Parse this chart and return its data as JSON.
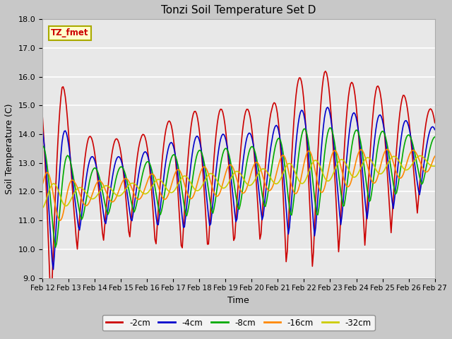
{
  "title": "Tonzi Soil Temperature Set D",
  "xlabel": "Time",
  "ylabel": "Soil Temperature (C)",
  "ylim": [
    9.0,
    18.0
  ],
  "yticks": [
    9.0,
    10.0,
    11.0,
    12.0,
    13.0,
    14.0,
    15.0,
    16.0,
    17.0,
    18.0
  ],
  "xtick_labels": [
    "Feb 12",
    "Feb 13",
    "Feb 14",
    "Feb 15",
    "Feb 16",
    "Feb 17",
    "Feb 18",
    "Feb 19",
    "Feb 20",
    "Feb 21",
    "Feb 22",
    "Feb 23",
    "Feb 24",
    "Feb 25",
    "Feb 26",
    "Feb 27"
  ],
  "series_labels": [
    "-2cm",
    "-4cm",
    "-8cm",
    "-16cm",
    "-32cm"
  ],
  "series_colors": [
    "#cc0000",
    "#0000cc",
    "#00aa00",
    "#ff8800",
    "#cccc00"
  ],
  "line_widths": [
    1.2,
    1.2,
    1.2,
    1.2,
    1.2
  ],
  "legend_label": "TZ_fmet",
  "legend_bg": "#ffffcc",
  "legend_border": "#aaaa00",
  "plot_bg": "#e8e8e8",
  "grid_color": "#ffffff",
  "title_fontsize": 11,
  "axis_fontsize": 9,
  "tick_fontsize": 8
}
